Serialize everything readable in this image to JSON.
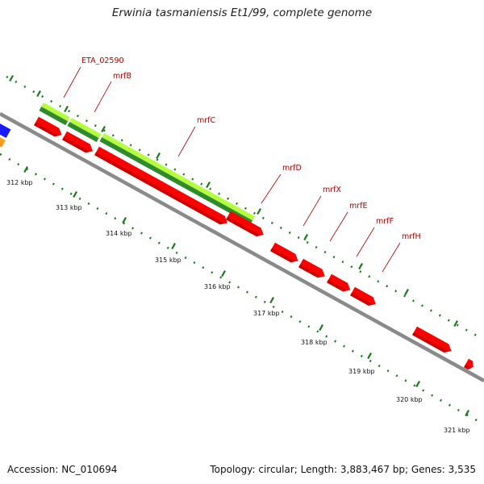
{
  "title": "Erwinia tasmaniensis Et1/99, complete genome",
  "accession_text": "Accession: NC_010694",
  "summary_text": "Topology: circular; Length: 3,883,467 bp; Genes: 3,535",
  "colors": {
    "backbone": "#8a8a8a",
    "cds": "#ff0000",
    "cds_dark": "#cc0000",
    "gene_light": "#b4ff3c",
    "gene_dark": "#2f8a2f",
    "ruler": "#1e7a1e",
    "label": "#b00000",
    "other_feature_blue": "#1a1aff",
    "other_feature_orange": "#ff9a1a"
  },
  "ticks": [
    {
      "label": "312 kbp"
    },
    {
      "label": "313 kbp"
    },
    {
      "label": "314 kbp"
    },
    {
      "label": "315 kbp"
    },
    {
      "label": "316 kbp"
    },
    {
      "label": "317 kbp"
    },
    {
      "label": "318 kbp"
    },
    {
      "label": "319 kbp"
    },
    {
      "label": "320 kbp"
    },
    {
      "label": "321 kbp"
    }
  ],
  "genes": [
    {
      "name": "ETA_02590"
    },
    {
      "name": "mrfB"
    },
    {
      "name": "mrfC"
    },
    {
      "name": "mrfD"
    },
    {
      "name": "mrfX"
    },
    {
      "name": "mrfE"
    },
    {
      "name": "mrfF"
    },
    {
      "name": "mrfH"
    }
  ]
}
